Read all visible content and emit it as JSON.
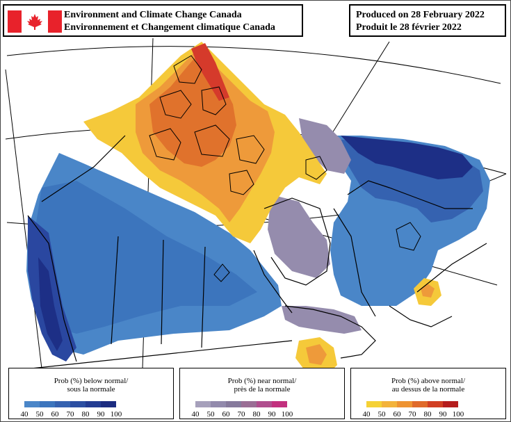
{
  "header": {
    "agency_en": "Environment and Climate Change Canada",
    "agency_fr": "Environnement et Changement climatique Canada",
    "produced_en": "Produced on 28 February 2022",
    "produced_fr": "Produit le 28 février 2022"
  },
  "flag": {
    "red": "#e8222b",
    "white": "#ffffff"
  },
  "legends": [
    {
      "title_1": "Prob (%) below normal/",
      "title_2": "sous la normale",
      "ticks": [
        "40",
        "50",
        "60",
        "70",
        "80",
        "90",
        "100"
      ],
      "colors": [
        "#4a86c8",
        "#3c75bd",
        "#3562b0",
        "#2c4fa2",
        "#233c92",
        "#1b2c80"
      ]
    },
    {
      "title_1": "Prob (%) near normal/",
      "title_2": "près de la normale",
      "ticks": [
        "40",
        "50",
        "60",
        "70",
        "80",
        "90",
        "100"
      ],
      "colors": [
        "#a6a0bb",
        "#928aac",
        "#867a9c",
        "#9a6e95",
        "#b04e8e",
        "#c2307e"
      ]
    },
    {
      "title_1": "Prob (%) above normal/",
      "title_2": "au dessus de la normale",
      "ticks": [
        "40",
        "50",
        "60",
        "70",
        "80",
        "90",
        "100"
      ],
      "colors": [
        "#f5d135",
        "#f3b33a",
        "#ee9332",
        "#e06a2a",
        "#d13f23",
        "#b51d1d"
      ]
    }
  ],
  "map_colors": {
    "below_light": "#4a86c8",
    "below_mid": "#3c75bd",
    "below_dark": "#2a47a0",
    "below_darkest": "#1d2f86",
    "near": "#958cad",
    "above_light": "#f5c93a",
    "above_mid": "#ee9a3a",
    "above_high": "#e0722c",
    "above_max": "#d53a2b"
  }
}
